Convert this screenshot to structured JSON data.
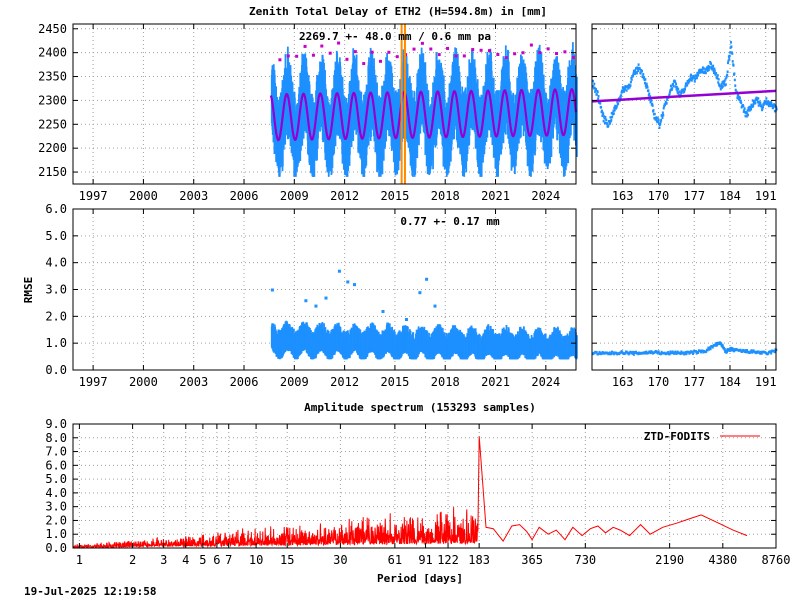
{
  "colors": {
    "ztd_points": "#1e90ff",
    "ztd_fit": "#9400d3",
    "ztd_outlier": "#c800c8",
    "event_line": "#ff8c00",
    "spectrum": "#ff0000",
    "grid": "#a0a0a0",
    "rmse_points": "#1e90ff"
  },
  "footer_timestamp": "19-Jul-2025 12:19:58",
  "chart_data": [
    {
      "id": "ztd-main",
      "type": "scatter",
      "title": "Zenith Total Delay of ETH2 (H=594.8m) in [mm]",
      "annotation": "2269.7 +-  48.0 mm /  0.6 mm pa",
      "xlabel": "",
      "ylabel": "",
      "xlim": [
        1995.8,
        2025.8
      ],
      "ylim": [
        2125,
        2460
      ],
      "xticks": [
        1997,
        2000,
        2003,
        2006,
        2009,
        2012,
        2015,
        2018,
        2021,
        2024
      ],
      "yticks": [
        2150,
        2200,
        2250,
        2300,
        2350,
        2400,
        2450
      ],
      "grid": true,
      "data_start_year": 2007.6,
      "mean": 2269.7,
      "mean_uncertainty": 48.0,
      "trend_per_year": 0.6,
      "seasonal_amplitude": 48,
      "scatter_range": [
        2140,
        2440
      ],
      "event_lines": [
        2015.4,
        2015.6
      ]
    },
    {
      "id": "ztd-recent",
      "type": "scatter",
      "xlim": [
        157,
        193
      ],
      "ylim": [
        2125,
        2460
      ],
      "xticks": [
        163,
        170,
        177,
        184,
        191
      ],
      "grid": true,
      "series": [
        {
          "name": "",
          "x": [
            157,
            158,
            159,
            160,
            161,
            162,
            163,
            164,
            165,
            166,
            167,
            168,
            169,
            170,
            171,
            172,
            173,
            174,
            175,
            176,
            177,
            178,
            179,
            180,
            181,
            182,
            183,
            184,
            185,
            186,
            187,
            188,
            189,
            190,
            191,
            192,
            193
          ],
          "values": [
            2335,
            2310,
            2265,
            2250,
            2275,
            2300,
            2325,
            2330,
            2355,
            2370,
            2350,
            2310,
            2270,
            2250,
            2285,
            2320,
            2340,
            2310,
            2325,
            2350,
            2345,
            2365,
            2360,
            2375,
            2360,
            2330,
            2340,
            2420,
            2315,
            2295,
            2270,
            2290,
            2305,
            2285,
            2300,
            2290,
            2280
          ]
        }
      ],
      "trend": {
        "x": [
          157,
          193
        ],
        "values": [
          2298,
          2320
        ]
      }
    },
    {
      "id": "rmse-main",
      "type": "scatter",
      "ylabel": "RMSE",
      "annotation": "0.77 +-  0.17 mm",
      "xlim": [
        1995.8,
        2025.8
      ],
      "ylim": [
        0,
        6
      ],
      "xticks": [
        1997,
        2000,
        2003,
        2006,
        2009,
        2012,
        2015,
        2018,
        2021,
        2024
      ],
      "yticks": [
        0.0,
        1.0,
        2.0,
        3.0,
        4.0,
        5.0,
        6.0
      ],
      "grid": true,
      "data_start_year": 2007.6,
      "mean": 0.77,
      "uncertainty": 0.17,
      "outliers": {
        "x": [
          2007.6,
          2009.6,
          2010.2,
          2010.8,
          2011.6,
          2012.1,
          2012.5,
          2013.5,
          2014.2,
          2015.6,
          2016.4,
          2016.8,
          2017.3
        ],
        "values": [
          3.0,
          2.6,
          2.4,
          2.7,
          3.7,
          3.3,
          3.2,
          1.7,
          2.2,
          1.9,
          2.9,
          3.4,
          2.4
        ]
      }
    },
    {
      "id": "rmse-recent",
      "type": "scatter",
      "xlim": [
        157,
        193
      ],
      "ylim": [
        0,
        6
      ],
      "xticks": [
        163,
        170,
        177,
        184,
        191
      ],
      "grid": true,
      "series": [
        {
          "name": "",
          "x": [
            157,
            159,
            161,
            163,
            165,
            167,
            169,
            171,
            173,
            175,
            177,
            179,
            181,
            182,
            183,
            184,
            185,
            187,
            189,
            191,
            193
          ],
          "values": [
            0.65,
            0.62,
            0.64,
            0.66,
            0.63,
            0.65,
            0.68,
            0.62,
            0.66,
            0.64,
            0.67,
            0.72,
            0.95,
            1.0,
            0.7,
            0.78,
            0.74,
            0.7,
            0.68,
            0.62,
            0.75
          ]
        }
      ]
    },
    {
      "id": "spectrum",
      "type": "line",
      "title": "Amplitude spectrum (153293 samples)",
      "xlabel": "Period [days]",
      "ylabel": "",
      "xlim": [
        0.92,
        8760
      ],
      "ylim": [
        0,
        9
      ],
      "xscale": "log",
      "xticks": [
        1,
        2,
        3,
        4,
        5,
        6,
        7,
        10,
        15,
        30,
        61,
        91,
        122,
        183,
        365,
        730,
        2190,
        4380,
        8760
      ],
      "xtick_labels": [
        "1",
        "2",
        "3",
        "4",
        "5",
        "6",
        "7",
        "10",
        "15",
        "30",
        "61",
        "91",
        "122",
        "183",
        "365",
        "730",
        "2190",
        "4380",
        "8760"
      ],
      "yticks": [
        0.0,
        1.0,
        2.0,
        3.0,
        4.0,
        5.0,
        6.0,
        7.0,
        8.0,
        9.0
      ],
      "grid": true,
      "legend_position": "top-right",
      "series": [
        {
          "name": "ZTD-FODITS",
          "x": [
            183,
            200,
            220,
            250,
            280,
            310,
            340,
            365,
            400,
            450,
            500,
            560,
            620,
            700,
            780,
            860,
            950,
            1050,
            1150,
            1300,
            1500,
            1700,
            2000,
            2400,
            2800,
            3300,
            4000,
            5000,
            6000
          ],
          "values": [
            8.1,
            1.5,
            1.4,
            0.5,
            1.6,
            1.7,
            1.2,
            0.6,
            1.5,
            1.0,
            1.3,
            0.6,
            1.5,
            0.9,
            1.4,
            1.6,
            1.1,
            1.5,
            1.3,
            0.9,
            1.7,
            1.0,
            1.5,
            1.8,
            2.1,
            2.4,
            1.9,
            1.3,
            0.9
          ]
        }
      ]
    }
  ]
}
